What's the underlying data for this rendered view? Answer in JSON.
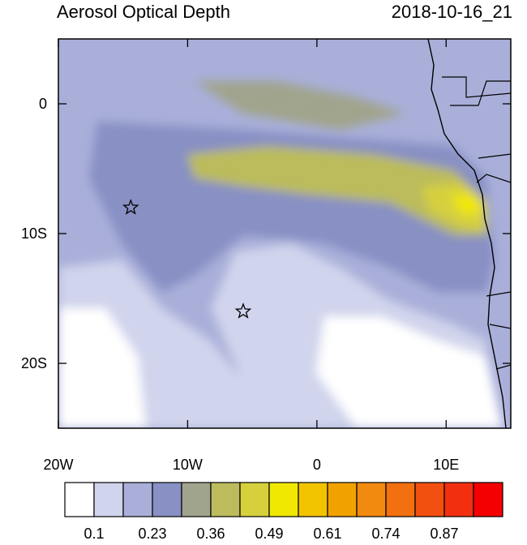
{
  "chart_data": {
    "type": "map",
    "title": "Aerosol Optical Depth",
    "timestamp": "2018-10-16_21",
    "xlim": [
      -20,
      15
    ],
    "ylim": [
      -25,
      5
    ],
    "xticks": [
      {
        "value": -20,
        "label": "20W"
      },
      {
        "value": -10,
        "label": "10W"
      },
      0,
      {
        "value": 10,
        "label": "10E"
      }
    ],
    "yticks": [
      0,
      {
        "value": -10,
        "label": "10S"
      },
      {
        "value": -20,
        "label": "20S"
      }
    ],
    "markers": [
      {
        "lon": -14.4,
        "lat": -8.0
      },
      {
        "lon": -5.7,
        "lat": -16.0
      }
    ],
    "colorbar": {
      "colors": [
        "#ffffff",
        "#d0d4ec",
        "#a9afd9",
        "#8890c4",
        "#a0a48c",
        "#bcbc5c",
        "#d6d03c",
        "#f0e800",
        "#f2c400",
        "#f2a200",
        "#f28a10",
        "#f27010",
        "#f25010",
        "#f23010",
        "#f40000"
      ],
      "labels": [
        {
          "value": 0.1,
          "label": "0.1"
        },
        {
          "value": 0.23,
          "label": "0.23"
        },
        {
          "value": 0.36,
          "label": "0.36"
        },
        {
          "value": 0.49,
          "label": "0.49"
        },
        {
          "value": 0.61,
          "label": "0.61"
        },
        {
          "value": 0.74,
          "label": "0.74"
        },
        {
          "value": 0.87,
          "label": "0.87"
        }
      ]
    }
  }
}
